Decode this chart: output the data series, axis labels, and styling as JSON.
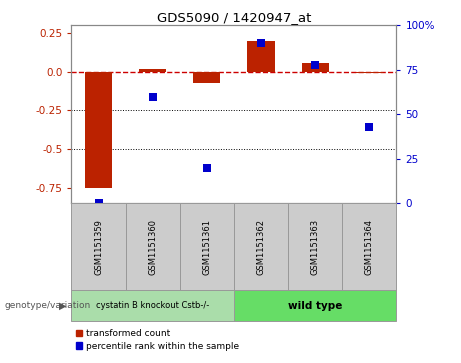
{
  "title": "GDS5090 / 1420947_at",
  "samples": [
    "GSM1151359",
    "GSM1151360",
    "GSM1151361",
    "GSM1151362",
    "GSM1151363",
    "GSM1151364"
  ],
  "red_values": [
    -0.75,
    0.02,
    -0.07,
    0.2,
    0.06,
    -0.01
  ],
  "blue_values_pct": [
    0,
    60,
    20,
    90,
    78,
    43
  ],
  "ylim_left": [
    -0.85,
    0.3
  ],
  "ylim_right": [
    0,
    100
  ],
  "y_ticks_left": [
    -0.75,
    -0.5,
    -0.25,
    0.0,
    0.25
  ],
  "y_ticks_right": [
    0,
    25,
    50,
    75,
    100
  ],
  "hlines": [
    -0.25,
    -0.5
  ],
  "red_color": "#bb2200",
  "blue_color": "#0000cc",
  "dashed_line_color": "#cc0000",
  "bar_width": 0.5,
  "dot_size": 28,
  "legend_label_red": "transformed count",
  "legend_label_blue": "percentile rank within the sample",
  "genotype_label": "genotype/variation",
  "group1_label": "cystatin B knockout Cstb-/-",
  "group2_label": "wild type",
  "group1_color": "#aaddaa",
  "group2_color": "#66dd66",
  "sample_box_color": "#cccccc",
  "sample_box_edge": "#999999"
}
